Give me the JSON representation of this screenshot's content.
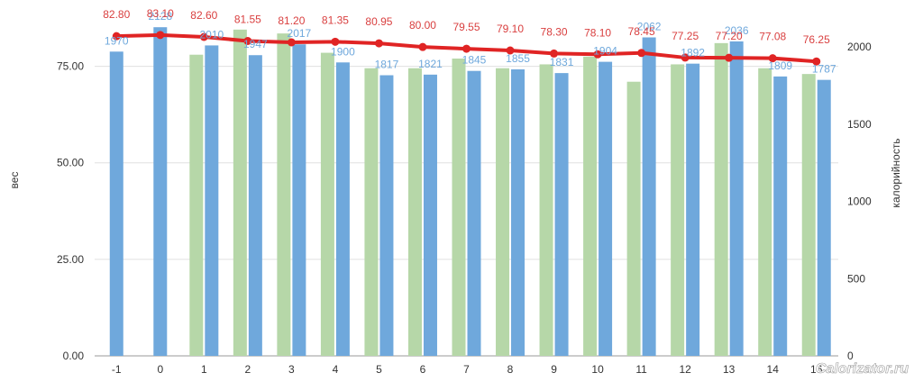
{
  "chart_data": {
    "type": "bar",
    "categories": [
      "-1",
      "0",
      "1",
      "2",
      "3",
      "4",
      "5",
      "6",
      "7",
      "8",
      "9",
      "10",
      "11",
      "12",
      "13",
      "14",
      "16"
    ],
    "ylabel": "вес",
    "y2label": "калорийность",
    "ylim": [
      0,
      87.5
    ],
    "y2lim": [
      0,
      2187.5
    ],
    "yticks": [
      "0.00",
      "25.00",
      "50.00",
      "75.00"
    ],
    "y2ticks": [
      "0",
      "500",
      "1000",
      "1500",
      "2000"
    ],
    "grid": true,
    "series": [
      {
        "type": "bar",
        "axis": "left",
        "color": "#b6d7a8",
        "values": [
          null,
          null,
          78,
          84.5,
          83.5,
          78.5,
          74.5,
          74.5,
          77,
          74.5,
          75.5,
          77.5,
          71,
          75.5,
          81,
          74.5,
          73
        ]
      },
      {
        "type": "bar",
        "axis": "right",
        "color": "#6fa8dc",
        "values": [
          1970,
          2128,
          2010,
          1947,
          2017,
          1900,
          1817,
          1821,
          1845,
          1855,
          1831,
          1904,
          2062,
          1892,
          2036,
          1809,
          1787
        ],
        "labels": [
          "1970",
          "2128",
          "2010",
          "1947",
          "2017",
          "1900",
          "1817",
          "1821",
          "1845",
          "1855",
          "1831",
          "1904",
          "2062",
          "1892",
          "2036",
          "1809",
          "1787"
        ]
      },
      {
        "type": "line",
        "axis": "left",
        "color": "#e02424",
        "values": [
          82.8,
          83.1,
          82.6,
          81.55,
          81.2,
          81.35,
          80.95,
          80.0,
          79.55,
          79.1,
          78.3,
          78.1,
          78.45,
          77.25,
          77.2,
          77.08,
          76.25
        ],
        "labels": [
          "82.80",
          "83.10",
          "82.60",
          "81.55",
          "81.20",
          "81.35",
          "80.95",
          "80.00",
          "79.55",
          "79.10",
          "78.30",
          "78.10",
          "78.45",
          "77.25",
          "77.20",
          "77.08",
          "76.25"
        ]
      }
    ]
  },
  "watermark": "Calorizator.ru"
}
